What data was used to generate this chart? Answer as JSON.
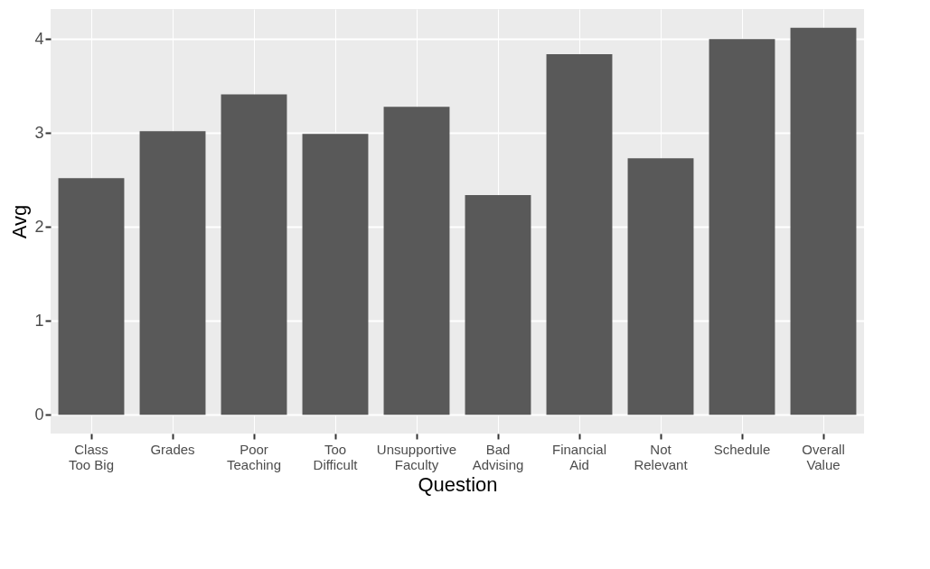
{
  "chart_data": {
    "type": "bar",
    "xlabel": "Question",
    "ylabel": "Avg",
    "categories": [
      "Class\nToo Big",
      "Grades",
      "Poor\nTeaching",
      "Too\nDifficult",
      "Unsupportive\nFaculty",
      "Bad\nAdvising",
      "Financial\nAid",
      "Not\nRelevant",
      "Schedule",
      "Overall\nValue"
    ],
    "values": [
      2.52,
      3.02,
      3.41,
      2.99,
      3.28,
      2.34,
      3.84,
      2.73,
      4.0,
      4.12
    ],
    "color": "#595959",
    "ylim": [
      -0.2,
      4.32
    ],
    "yticks": [
      0,
      1,
      2,
      3,
      4
    ],
    "grid": true
  }
}
